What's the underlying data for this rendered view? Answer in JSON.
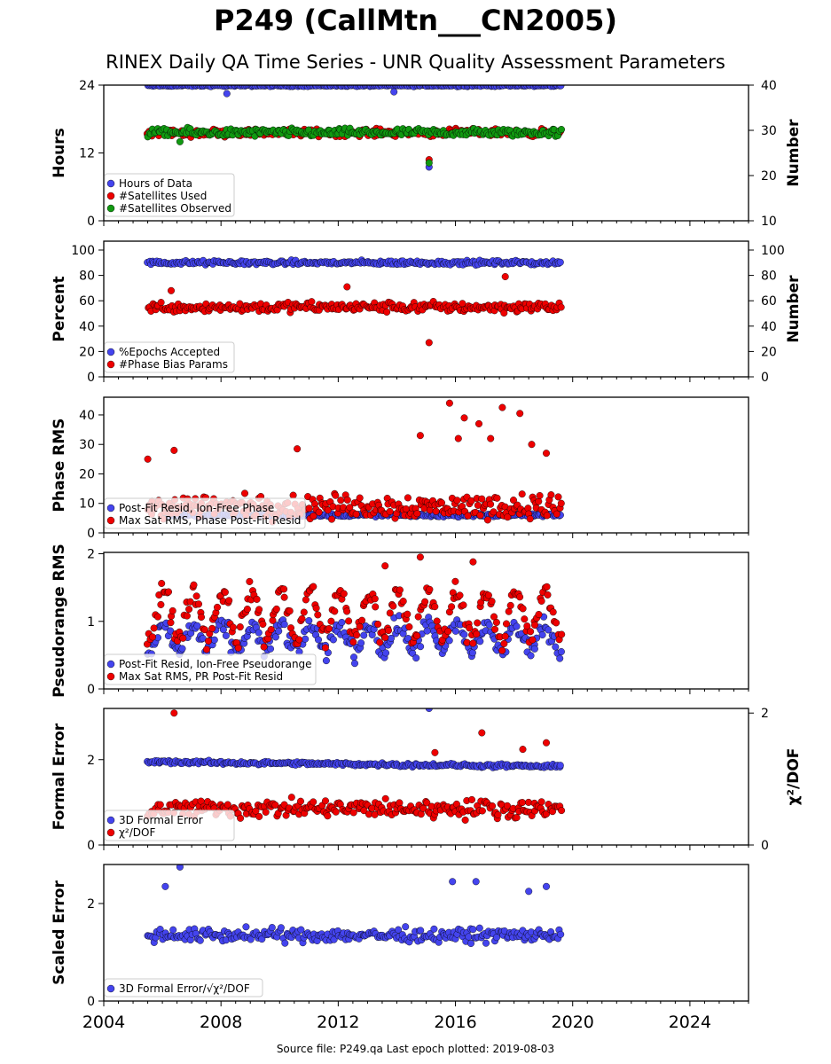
{
  "title": "P249 (CallMtn___CN2005)",
  "subtitle": "RINEX Daily QA Time Series - UNR Quality Assessment Parameters",
  "footer": "Source file: P249.qa Last epoch plotted: 2019-08-03",
  "colors": {
    "blue": "#4444ee",
    "red": "#ee0000",
    "green": "#119911",
    "edge": "#000000"
  },
  "chart_data": [
    {
      "type": "scatter",
      "ylabel": "Hours",
      "y2label": "Number",
      "xlim": [
        2004,
        2026
      ],
      "ylim": [
        0,
        24
      ],
      "y2lim": [
        10,
        40
      ],
      "yticks": [
        "0",
        "12",
        "24"
      ],
      "y2ticks": [
        "10",
        "20",
        "30",
        "40"
      ],
      "grid": false,
      "legend_position": "lower-left",
      "series": [
        {
          "name": "Hours of Data",
          "color": "blue",
          "axis": "left",
          "x_range": [
            2005.5,
            2019.6
          ],
          "level": 23.9,
          "spread": 0.2,
          "outliers": [
            [
              2008.2,
              22.5
            ],
            [
              2013.9,
              22.8
            ],
            [
              2015.1,
              9.5
            ]
          ]
        },
        {
          "name": "#Satellites Used",
          "color": "red",
          "axis": "right",
          "x_range": [
            2005.5,
            2019.6
          ],
          "level": 29.5,
          "spread": 1.2,
          "outliers": [
            [
              2015.1,
              23.5
            ],
            [
              2009.4,
              30.1
            ]
          ]
        },
        {
          "name": "#Satellites Observed",
          "color": "green",
          "axis": "right",
          "x_range": [
            2005.5,
            2019.6
          ],
          "level": 29.5,
          "spread": 1.3,
          "outliers": [
            [
              2006.6,
              27.5
            ],
            [
              2015.1,
              22.8
            ]
          ]
        }
      ]
    },
    {
      "type": "scatter",
      "ylabel": "Percent",
      "y2label": "Number",
      "xlim": [
        2004,
        2026
      ],
      "ylim": [
        0,
        107
      ],
      "y2lim": [
        0,
        107
      ],
      "yticks": [
        "0",
        "20",
        "40",
        "60",
        "80",
        "100"
      ],
      "y2ticks": [
        "0",
        "20",
        "40",
        "60",
        "80",
        "100"
      ],
      "grid": false,
      "legend_position": "lower-left",
      "series": [
        {
          "name": "%Epochs Accepted",
          "color": "blue",
          "axis": "left",
          "x_range": [
            2005.5,
            2019.6
          ],
          "level": 90,
          "spread": 2.5,
          "outliers": []
        },
        {
          "name": "#Phase Bias Params",
          "color": "red",
          "axis": "right",
          "x_range": [
            2005.5,
            2019.6
          ],
          "level": 55,
          "spread": 6,
          "outliers": [
            [
              2015.1,
              27
            ],
            [
              2017.7,
              79
            ],
            [
              2006.3,
              68
            ],
            [
              2012.3,
              71
            ]
          ]
        }
      ]
    },
    {
      "type": "scatter",
      "ylabel": "Phase RMS",
      "xlim": [
        2004,
        2026
      ],
      "ylim": [
        0,
        46
      ],
      "yticks": [
        "0",
        "10",
        "20",
        "30",
        "40"
      ],
      "grid": false,
      "legend_position": "lower-left",
      "series": [
        {
          "name": "Post-Fit Resid, Ion-Free Phase",
          "color": "blue",
          "axis": "left",
          "x_range": [
            2006,
            2019.6
          ],
          "level": 6,
          "spread": 0.8,
          "outliers": []
        },
        {
          "name": "Max Sat RMS, Phase Post-Fit Resid",
          "color": "red",
          "axis": "left",
          "x_range": [
            2005.5,
            2019.6
          ],
          "level": 9,
          "spread": 6,
          "outliers": [
            [
              2015.8,
              44
            ],
            [
              2016.3,
              39
            ],
            [
              2016.8,
              37
            ],
            [
              2017.6,
              42.5
            ],
            [
              2018.2,
              40.5
            ],
            [
              2014.8,
              33
            ],
            [
              2016.1,
              32
            ],
            [
              2017.2,
              32
            ],
            [
              2018.6,
              30
            ],
            [
              2010.6,
              28.5
            ],
            [
              2006.4,
              28
            ],
            [
              2005.5,
              25
            ],
            [
              2019.1,
              27
            ]
          ]
        }
      ]
    },
    {
      "type": "scatter",
      "ylabel": "Pseudorange RMS",
      "xlim": [
        2004,
        2026
      ],
      "ylim": [
        0,
        2.02
      ],
      "yticks": [
        "0",
        "1",
        "2"
      ],
      "grid": false,
      "legend_position": "lower-left",
      "series": [
        {
          "name": "Post-Fit Resid, Ion-Free Pseudorange",
          "color": "blue",
          "axis": "left",
          "x_range": [
            2005.5,
            2019.6
          ],
          "level": 0.75,
          "spread": 0.22,
          "seasonal": 0.2,
          "outliers": []
        },
        {
          "name": "Max Sat RMS, PR Post-Fit Resid",
          "color": "red",
          "axis": "left",
          "x_range": [
            2005.5,
            2019.6
          ],
          "level": 1.1,
          "spread": 0.25,
          "seasonal": 0.35,
          "outliers": [
            [
              2014.8,
              1.95
            ],
            [
              2016.6,
              1.88
            ],
            [
              2013.6,
              1.82
            ]
          ]
        }
      ]
    },
    {
      "type": "scatter",
      "ylabel": "Formal Error",
      "y2label": "χ²/DOF",
      "xlim": [
        2004,
        2026
      ],
      "ylim": [
        0,
        3.2
      ],
      "y2lim": [
        0,
        2.07
      ],
      "yticks": [
        "0",
        "2"
      ],
      "y2ticks": [
        "0",
        "2"
      ],
      "grid": false,
      "legend_position": "lower-left",
      "series": [
        {
          "name": "3D Formal Error",
          "color": "blue",
          "axis": "left",
          "x_range": [
            2005.5,
            2019.6
          ],
          "level": 1.95,
          "spread": 0.06,
          "trend": -0.008,
          "outliers": [
            [
              2015.1,
              3.2
            ]
          ]
        },
        {
          "name": "χ²/DOF",
          "color": "red",
          "axis": "right",
          "x_range": [
            2005.5,
            2019.6
          ],
          "level": 0.55,
          "spread": 0.2,
          "outliers": [
            [
              2006.4,
              2.0
            ],
            [
              2016.9,
              1.7
            ],
            [
              2019.1,
              1.55
            ],
            [
              2018.3,
              1.45
            ],
            [
              2015.3,
              1.4
            ]
          ]
        }
      ]
    },
    {
      "type": "scatter",
      "ylabel": "Scaled Error",
      "xlim": [
        2004,
        2026
      ],
      "ylim": [
        0,
        2.8
      ],
      "yticks": [
        "0",
        "2"
      ],
      "grid": false,
      "legend_position": "lower-left",
      "series": [
        {
          "name": "3D Formal Error/√χ²/DOF",
          "color": "blue",
          "axis": "left",
          "x_range": [
            2005.5,
            2019.6
          ],
          "level": 1.35,
          "spread": 0.2,
          "outliers": [
            [
              2006.6,
              2.75
            ],
            [
              2006.1,
              2.35
            ],
            [
              2015.9,
              2.45
            ],
            [
              2016.7,
              2.45
            ],
            [
              2019.1,
              2.35
            ],
            [
              2018.5,
              2.25
            ]
          ]
        }
      ]
    }
  ],
  "x_axis": {
    "ticks": [
      "2004",
      "2008",
      "2012",
      "2016",
      "2020",
      "2024"
    ],
    "tick_values": [
      2004,
      2008,
      2012,
      2016,
      2020,
      2024
    ]
  }
}
